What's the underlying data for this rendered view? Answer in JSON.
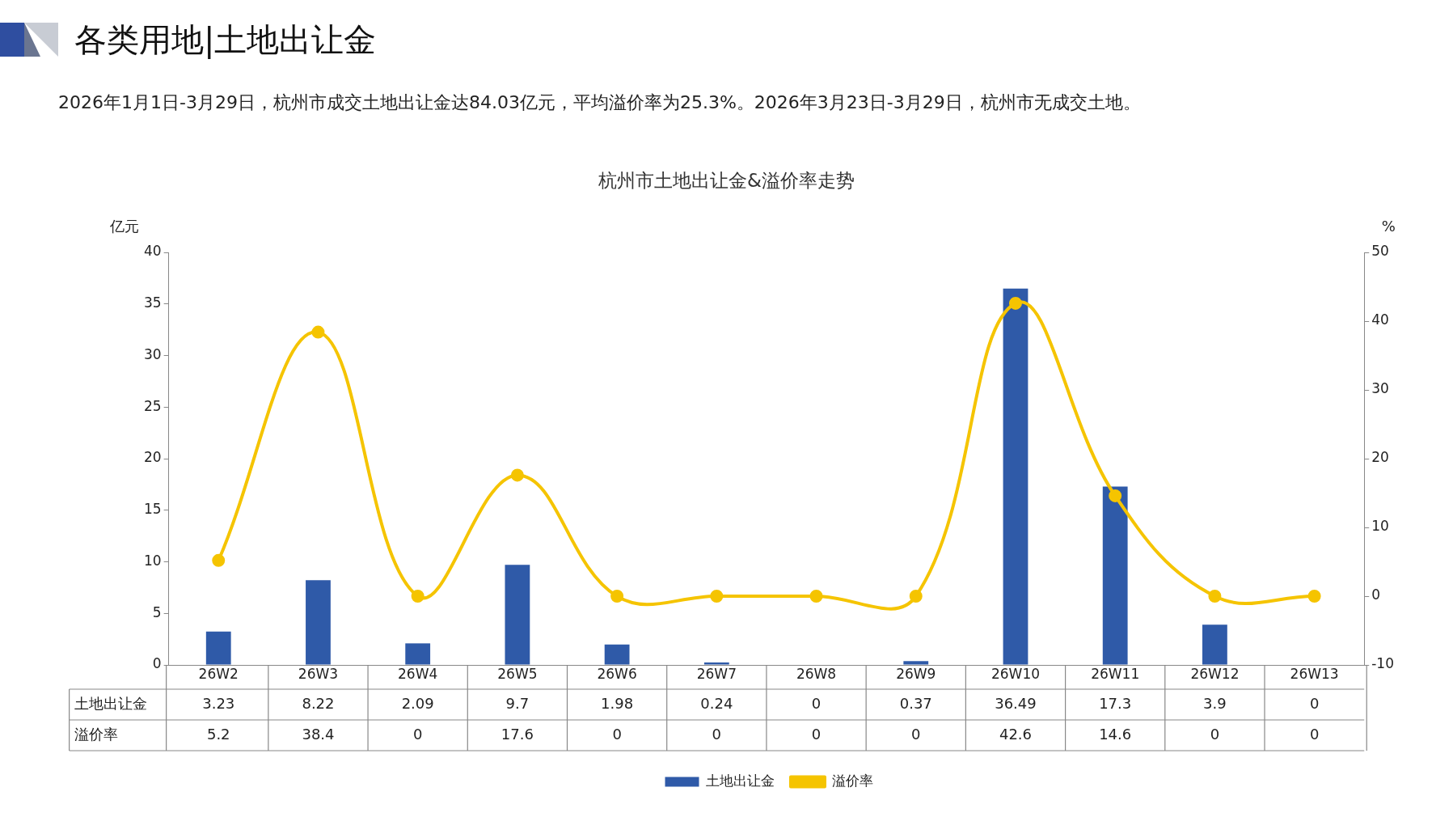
{
  "chart_data": {
    "type": "bar",
    "title": "杭州市土地出让金&溢价率走势",
    "annotations": [
      "各类用地|土地出让金",
      "2026年1月1日-3月29日，杭州市成交土地出让金达84.03亿元，平均溢价率为25.3%。2026年3月23日-3月29日，杭州市无成交土地。"
    ],
    "ylabel": "亿元",
    "y2label": "%",
    "categories": [
      "26W2",
      "26W3",
      "26W4",
      "26W5",
      "26W6",
      "26W7",
      "26W8",
      "26W9",
      "26W10",
      "26W11",
      "26W12",
      "26W13"
    ],
    "series": [
      {
        "name": "土地出让金",
        "color": "#2f5aa8",
        "values": [
          3.23,
          8.22,
          2.09,
          9.7,
          1.98,
          0.24,
          0,
          0.37,
          36.49,
          17.3,
          3.9,
          0
        ]
      },
      {
        "name": "溢价率",
        "type": "line",
        "axis": "y2",
        "color": "#f5c400",
        "values": [
          5.2,
          38.4,
          0,
          17.6,
          0,
          0,
          0,
          0,
          42.6,
          14.6,
          0,
          0
        ]
      }
    ],
    "ylim": [
      0,
      40
    ],
    "yticks": [
      0,
      5,
      10,
      15,
      20,
      25,
      30,
      35,
      40
    ],
    "y2lim": [
      -10,
      50
    ],
    "y2ticks": [
      -10,
      0,
      10,
      20,
      30,
      40,
      50
    ],
    "data_labels": true,
    "legend": "bottom",
    "grid": false,
    "marker": "circle",
    "line_style": "solid"
  }
}
